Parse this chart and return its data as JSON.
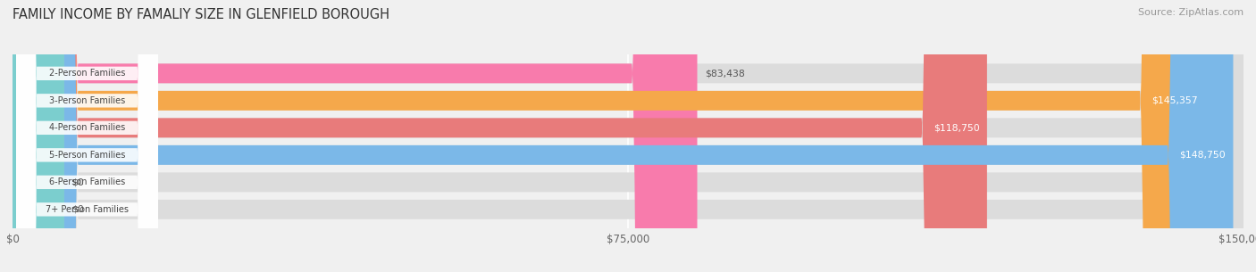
{
  "title": "FAMILY INCOME BY FAMALIY SIZE IN GLENFIELD BOROUGH",
  "source": "Source: ZipAtlas.com",
  "categories": [
    "2-Person Families",
    "3-Person Families",
    "4-Person Families",
    "5-Person Families",
    "6-Person Families",
    "7+ Person Families"
  ],
  "values": [
    83438,
    145357,
    118750,
    148750,
    0,
    0
  ],
  "bar_colors": [
    "#F87BAC",
    "#F5A84B",
    "#E87B7B",
    "#7BB8E8",
    "#C5A8E0",
    "#7BCECE"
  ],
  "xlim": [
    0,
    150000
  ],
  "xticks": [
    0,
    75000,
    150000
  ],
  "xtick_labels": [
    "$0",
    "$75,000",
    "$150,000"
  ],
  "value_labels": [
    "$83,438",
    "$145,357",
    "$118,750",
    "$148,750",
    "$0",
    "$0"
  ],
  "background_color": "#f0f0f0"
}
